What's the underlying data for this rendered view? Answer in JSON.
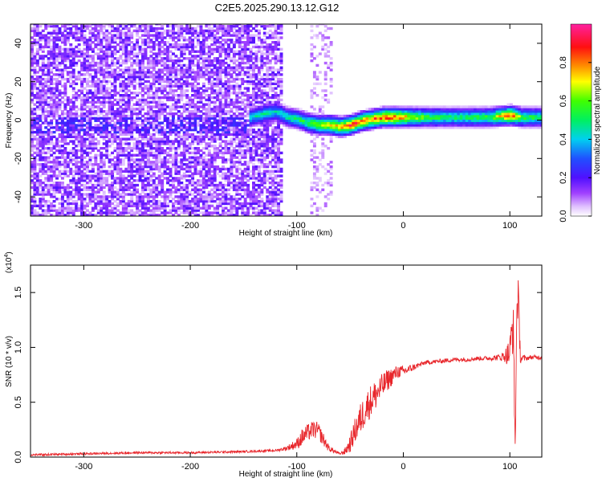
{
  "title": "C2E5.2025.290.13.12.G12",
  "colors": {
    "signal_line": "#e8262b",
    "spectrogram_base": "#7a1bf0",
    "axis": "#000000"
  },
  "chart_data": [
    {
      "type": "heatmap",
      "name_role": "spectrogram",
      "xlabel": "Height of straight line (km)",
      "ylabel": "Frequency (Hz)",
      "xlim": [
        -350,
        130
      ],
      "ylim": [
        -50,
        50
      ],
      "xticks": [
        -300,
        -200,
        -100,
        0,
        100
      ],
      "yticks": [
        -40,
        -20,
        0,
        20,
        40
      ],
      "colorbar": {
        "label": "Normalized spectral amplitude",
        "range": [
          0,
          1
        ],
        "ticks": [
          "0.0",
          "0.2",
          "0.4",
          "0.6",
          "0.8"
        ],
        "colormap": "rainbow (white-purple-blue-cyan-green-yellow-red-magenta)"
      },
      "ridge": {
        "x": [
          -145,
          -130,
          -120,
          -110,
          -100,
          -90,
          -80,
          -70,
          -60,
          -50,
          -40,
          -30,
          -20,
          -10,
          0,
          20,
          40,
          60,
          80,
          100,
          110,
          130
        ],
        "freq_hz": [
          1,
          3,
          4,
          1,
          0,
          -2,
          -3,
          -3,
          -4,
          -3,
          -1,
          0,
          1,
          1,
          1,
          1,
          1,
          1,
          1,
          2,
          1,
          1
        ],
        "amplitude": [
          0.45,
          0.5,
          0.45,
          0.5,
          0.55,
          0.6,
          0.7,
          0.75,
          0.85,
          0.9,
          0.85,
          0.85,
          0.9,
          0.9,
          0.8,
          0.6,
          0.55,
          0.55,
          0.6,
          0.9,
          0.6,
          0.55
        ]
      },
      "noise_region_x": [
        -350,
        -115
      ]
    },
    {
      "type": "line",
      "xlabel": "Height of straight line (km)",
      "ylabel": "SNR (10 * v/v)",
      "y_multiplier": "(x10^4)",
      "y_multiplier_base": "(x10",
      "y_multiplier_exp": "4",
      "xlim": [
        -350,
        130
      ],
      "ylim": [
        0,
        1.75
      ],
      "xticks": [
        -300,
        -200,
        -100,
        0,
        100
      ],
      "yticks": [
        "0.0",
        "0.5",
        "1.0",
        "1.5"
      ],
      "series": [
        {
          "x": [
            -350,
            -300,
            -250,
            -200,
            -150,
            -120,
            -110,
            -100,
            -95,
            -90,
            -85,
            -80,
            -75,
            -70,
            -60,
            -55,
            -50,
            -45,
            -40,
            -35,
            -30,
            -25,
            -20,
            -15,
            -10,
            -5,
            0,
            5,
            10,
            15,
            20,
            30,
            40,
            50,
            60,
            70,
            80,
            90,
            95,
            100,
            103,
            105,
            107,
            110,
            115,
            120,
            130
          ],
          "y": [
            0.02,
            0.03,
            0.04,
            0.04,
            0.05,
            0.06,
            0.08,
            0.12,
            0.18,
            0.22,
            0.25,
            0.24,
            0.16,
            0.08,
            0.03,
            0.05,
            0.12,
            0.25,
            0.35,
            0.45,
            0.52,
            0.58,
            0.64,
            0.7,
            0.74,
            0.78,
            0.78,
            0.8,
            0.82,
            0.84,
            0.86,
            0.87,
            0.88,
            0.89,
            0.89,
            0.9,
            0.9,
            0.91,
            0.92,
            0.95,
            1.25,
            0.1,
            1.6,
            0.9,
            0.9,
            0.91,
            0.91
          ],
          "noise_amplitude": [
            0.01,
            0.01,
            0.01,
            0.01,
            0.01,
            0.01,
            0.02,
            0.05,
            0.08,
            0.08,
            0.08,
            0.08,
            0.06,
            0.03,
            0.01,
            0.03,
            0.08,
            0.12,
            0.15,
            0.15,
            0.15,
            0.14,
            0.12,
            0.1,
            0.08,
            0.06,
            0.05,
            0.04,
            0.03,
            0.02,
            0.02,
            0.02,
            0.02,
            0.02,
            0.02,
            0.02,
            0.02,
            0.03,
            0.05,
            0.15,
            0.3,
            0.1,
            0.3,
            0.05,
            0.02,
            0.02,
            0.02
          ]
        }
      ]
    }
  ]
}
